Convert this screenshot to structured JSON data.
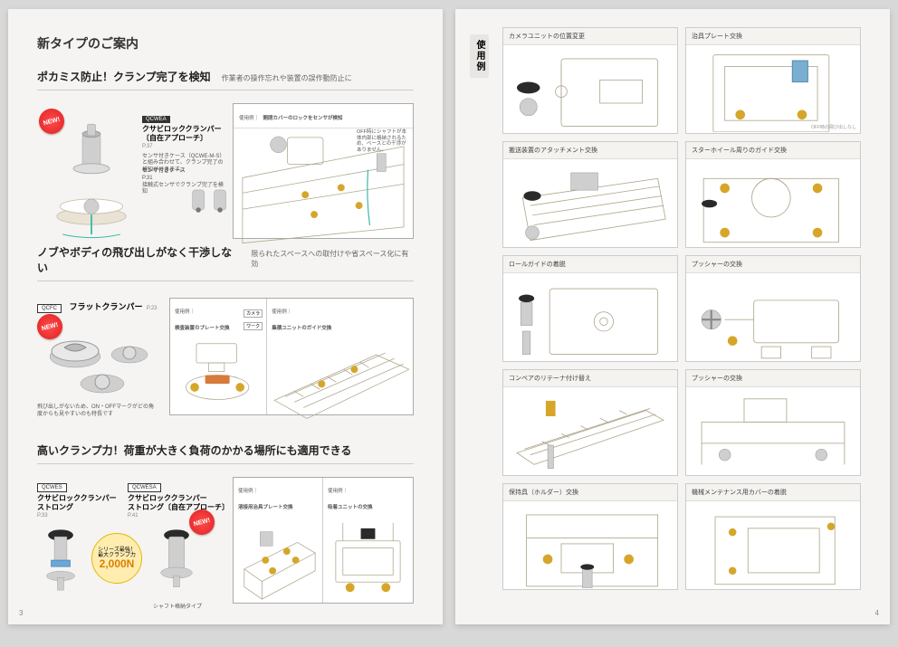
{
  "page": {
    "left_num": "3",
    "right_num": "4",
    "bg_color": "#f5f4f2",
    "accent_color": "#d6a62a",
    "new_badge": "NEW!"
  },
  "left": {
    "title": "新タイプのご案内",
    "sections": [
      {
        "headline": "ポカミス防止！クランプ完了を検知",
        "sub": "作業者の操作忘れや装置の誤作動防止に",
        "product": {
          "tag": "QCWEA",
          "name": "クサビロッククランパー\n〔自在アプローチ〕",
          "page_ref": "P.37",
          "desc": "センサ付きケース（QCWE-M-S）と組み合わせて、クランプ完了の検知ができます。"
        },
        "callout_a": {
          "title": "センサ付きケース",
          "ref": "P.31",
          "text": "接触式センサでクランプ完了を検知"
        },
        "callout_b": {
          "text": "OFF時にシャフトが本体内部に格納されるため、ベースとの干渉がありません。"
        },
        "example": {
          "label": "使用例｜",
          "text": "開閉カバーのロックをセンサが検知"
        }
      },
      {
        "headline": "ノブやボディの飛び出しがなく干渉しない",
        "sub": "限られたスペースへの取付けや省スペース化に有効",
        "product": {
          "tag": "QCFC",
          "name": "フラットクランパー",
          "page_ref": "P.23"
        },
        "desc": "飛び出しがないため、ON・OFFマークがどの角度からも見やすいのも特長です",
        "example": {
          "label": "使用例｜",
          "a_title": "検査装置のプレート交換",
          "a_l1": "カメラ",
          "a_l2": "ワーク",
          "b_title": "集積ユニットのガイド交換"
        }
      },
      {
        "headline": "高いクランプ力！荷重が大きく負荷のかかる場所にも適用できる",
        "prod_a": {
          "tag": "QCWES",
          "name": "クサビロッククランパー\nストロング",
          "page_ref": "P.33"
        },
        "prod_b": {
          "tag": "QCWESA",
          "name": "クサビロッククランパー\nストロング〔自在アプローチ〕",
          "page_ref": "P.41"
        },
        "bubble": {
          "l1": "シリーズ最強！",
          "l2": "最大クランプ力",
          "value": "2,000N"
        },
        "shaft_label": "シャフト格納タイプ",
        "example": {
          "label": "使用例｜",
          "a": "溶接用治具プレート交換",
          "b": "吸着ユニットの交換"
        }
      }
    ]
  },
  "right": {
    "title": "使用例",
    "cells": [
      {
        "cap": "カメラユニットの位置変更"
      },
      {
        "cap": "治具プレート交換",
        "note": "OFF時の飛び出しなし"
      },
      {
        "cap": "搬送装置のアタッチメント交換"
      },
      {
        "cap": "スターホイール周りのガイド交換"
      },
      {
        "cap": "ロールガイドの着脱"
      },
      {
        "cap": "プッシャーの交換"
      },
      {
        "cap": "コンベアのリテーナ付け替え"
      },
      {
        "cap": "プッシャーの交換"
      },
      {
        "cap": "保持具（ホルダー）交換"
      },
      {
        "cap": "機械メンテナンス用カバーの着脱"
      }
    ]
  }
}
